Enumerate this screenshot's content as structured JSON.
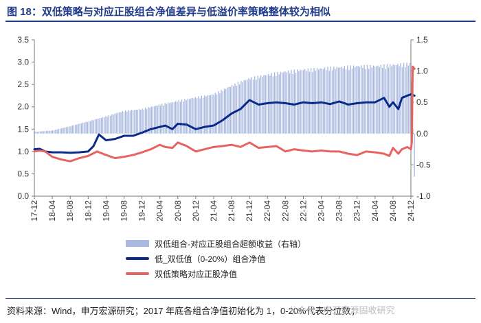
{
  "title": "图 18：双低策略与对应正股组合净值差异与低溢价率策略整体较为相似",
  "source": "资料来源：Wind，申万宏源研究；2017 年底各组合净值初始化为 1，0-20%代表分位数；",
  "watermark": "公众号 · 申万宏源固收研究",
  "chart_data": {
    "type": "bar+line",
    "x_ticks": [
      "17-12",
      "18-04",
      "18-08",
      "18-12",
      "19-04",
      "19-08",
      "19-12",
      "20-04",
      "20-08",
      "20-12",
      "21-04",
      "21-08",
      "21-12",
      "22-04",
      "22-08",
      "22-12",
      "23-04",
      "23-08",
      "23-12",
      "24-04",
      "24-08",
      "24-12"
    ],
    "y_left": {
      "range": [
        0,
        3.5
      ],
      "ticks": [
        "0.0",
        "0.5",
        "1.0",
        "1.5",
        "2.0",
        "2.5",
        "3.0",
        "3.5"
      ]
    },
    "y_right": {
      "range": [
        -1.0,
        1.5
      ],
      "ticks": [
        "-1.0",
        "-0.5",
        "0.0",
        "0.5",
        "1.0",
        "1.5"
      ]
    },
    "series": [
      {
        "name": "双低组合-对应正股组合超额收益（右轴）",
        "type": "bar",
        "axis": "right",
        "color": "#aab9e0",
        "points": [
          [
            0,
            0.03
          ],
          [
            1,
            0.05
          ],
          [
            2,
            0.12
          ],
          [
            3,
            0.2
          ],
          [
            4,
            0.28
          ],
          [
            5,
            0.37
          ],
          [
            6,
            0.4
          ],
          [
            7,
            0.47
          ],
          [
            8,
            0.53
          ],
          [
            9,
            0.59
          ],
          [
            10,
            0.64
          ],
          [
            11,
            0.78
          ],
          [
            12,
            0.9
          ],
          [
            13,
            0.96
          ],
          [
            14,
            1.01
          ],
          [
            15,
            1.04
          ],
          [
            16,
            1.06
          ],
          [
            17,
            1.08
          ],
          [
            18,
            1.1
          ],
          [
            19,
            1.1
          ],
          [
            20,
            1.12
          ],
          [
            21,
            1.14
          ],
          [
            21.2,
            -0.7
          ]
        ]
      },
      {
        "name": "低_双低值（0-20%）组合净值",
        "type": "line",
        "axis": "left",
        "color": "#0a2a8a",
        "points": [
          [
            0,
            1.05
          ],
          [
            0.3,
            1.06
          ],
          [
            0.6,
            1.0
          ],
          [
            1,
            0.98
          ],
          [
            1.5,
            0.98
          ],
          [
            2,
            0.97
          ],
          [
            2.5,
            0.98
          ],
          [
            3,
            1.0
          ],
          [
            3.3,
            1.12
          ],
          [
            3.6,
            1.38
          ],
          [
            4,
            1.25
          ],
          [
            4.5,
            1.28
          ],
          [
            5,
            1.35
          ],
          [
            5.5,
            1.35
          ],
          [
            6,
            1.42
          ],
          [
            6.5,
            1.5
          ],
          [
            7,
            1.55
          ],
          [
            7.3,
            1.58
          ],
          [
            7.7,
            1.5
          ],
          [
            8,
            1.62
          ],
          [
            8.5,
            1.6
          ],
          [
            9,
            1.5
          ],
          [
            9.5,
            1.55
          ],
          [
            10,
            1.58
          ],
          [
            10.5,
            1.7
          ],
          [
            11,
            1.85
          ],
          [
            11.5,
            1.95
          ],
          [
            12,
            2.15
          ],
          [
            12.5,
            2.05
          ],
          [
            13,
            2.08
          ],
          [
            13.5,
            2.1
          ],
          [
            14,
            2.08
          ],
          [
            14.5,
            2.05
          ],
          [
            15,
            2.1
          ],
          [
            15.5,
            2.08
          ],
          [
            16,
            2.1
          ],
          [
            16.5,
            2.06
          ],
          [
            17,
            2.12
          ],
          [
            17.5,
            2.05
          ],
          [
            18,
            2.08
          ],
          [
            18.5,
            2.1
          ],
          [
            19,
            2.1
          ],
          [
            19.5,
            2.2
          ],
          [
            19.8,
            2.0
          ],
          [
            20,
            2.1
          ],
          [
            20.3,
            1.95
          ],
          [
            20.5,
            2.2
          ],
          [
            20.8,
            2.25
          ],
          [
            21,
            2.28
          ],
          [
            21.2,
            2.25
          ]
        ]
      },
      {
        "name": "双低策略对应正股净值",
        "type": "line",
        "axis": "left",
        "color": "#e86262",
        "points": [
          [
            0,
            1.0
          ],
          [
            0.3,
            1.02
          ],
          [
            0.6,
            1.0
          ],
          [
            1,
            0.88
          ],
          [
            1.5,
            0.82
          ],
          [
            2,
            0.78
          ],
          [
            2.5,
            0.85
          ],
          [
            3,
            0.9
          ],
          [
            3.5,
            1.0
          ],
          [
            4,
            0.92
          ],
          [
            4.5,
            0.85
          ],
          [
            5,
            0.88
          ],
          [
            5.5,
            0.92
          ],
          [
            6,
            0.98
          ],
          [
            6.5,
            1.05
          ],
          [
            7,
            1.15
          ],
          [
            7.3,
            1.1
          ],
          [
            7.7,
            1.08
          ],
          [
            8,
            1.2
          ],
          [
            8.5,
            1.12
          ],
          [
            9,
            1.0
          ],
          [
            9.5,
            1.05
          ],
          [
            10,
            1.1
          ],
          [
            10.5,
            1.12
          ],
          [
            11,
            1.15
          ],
          [
            11.5,
            1.1
          ],
          [
            12,
            1.2
          ],
          [
            12.5,
            1.08
          ],
          [
            13,
            1.1
          ],
          [
            13.5,
            1.12
          ],
          [
            14,
            1.0
          ],
          [
            14.5,
            1.05
          ],
          [
            15,
            1.02
          ],
          [
            15.5,
            1.0
          ],
          [
            16,
            1.02
          ],
          [
            16.5,
            1.0
          ],
          [
            17,
            1.0
          ],
          [
            17.5,
            0.95
          ],
          [
            18,
            0.92
          ],
          [
            18.5,
            1.0
          ],
          [
            19,
            0.98
          ],
          [
            19.5,
            0.95
          ],
          [
            19.8,
            0.9
          ],
          [
            20,
            1.08
          ],
          [
            20.3,
            0.95
          ],
          [
            20.5,
            1.05
          ],
          [
            20.8,
            1.1
          ],
          [
            21,
            1.05
          ],
          [
            21.05,
            1.2
          ],
          [
            21.1,
            2.9
          ],
          [
            21.2,
            2.85
          ]
        ]
      }
    ]
  }
}
